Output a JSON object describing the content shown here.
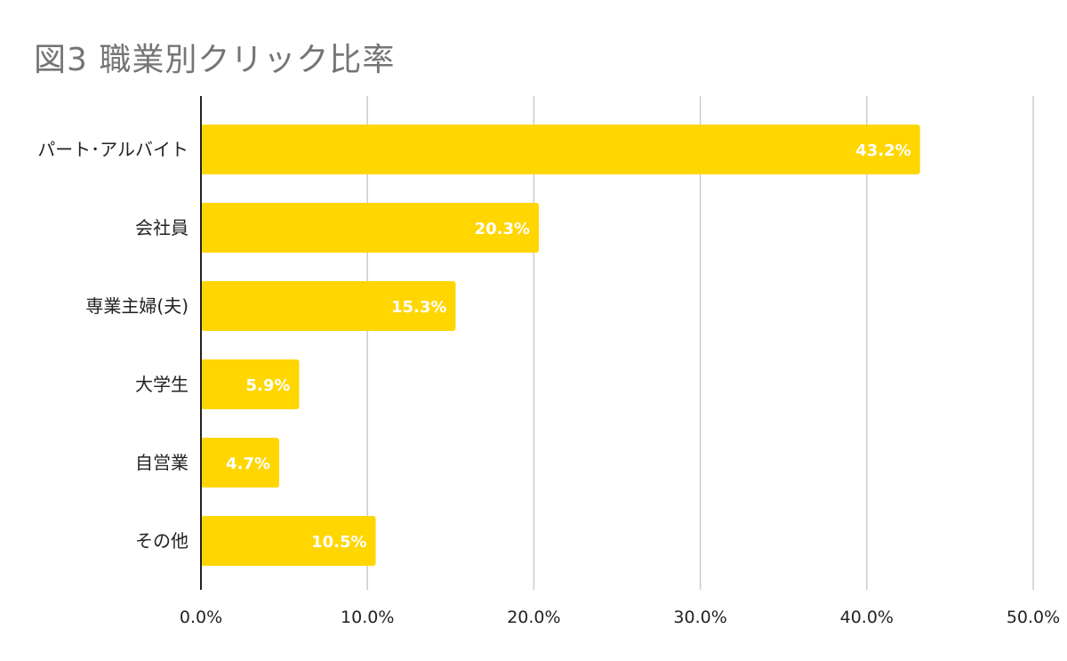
{
  "chart_data": {
    "type": "bar",
    "orientation": "horizontal",
    "title": "図3 職業別クリック比率",
    "categories": [
      "パート･アルバイト",
      "会社員",
      "専業主婦(夫)",
      "大学生",
      "自営業",
      "その他"
    ],
    "values": [
      43.2,
      20.3,
      15.3,
      5.9,
      4.7,
      10.5
    ],
    "data_labels": [
      "43.2%",
      "20.3%",
      "15.3%",
      "5.9%",
      "4.7%",
      "10.5%"
    ],
    "xlim": [
      0,
      50
    ],
    "x_ticks": [
      0,
      10,
      20,
      30,
      40,
      50
    ],
    "x_tick_labels": [
      "0.0%",
      "10.0%",
      "20.0%",
      "30.0%",
      "40.0%",
      "50.0%"
    ],
    "xlabel": "",
    "ylabel": "",
    "grid": "vertical",
    "legend": "none",
    "bar_color": "#ffd600",
    "label_color": "#ffffff"
  }
}
